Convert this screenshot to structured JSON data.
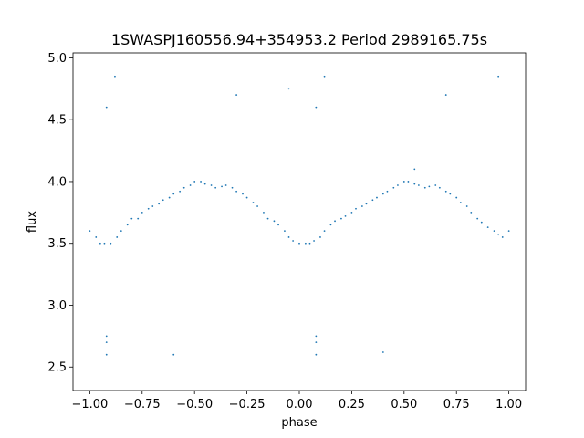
{
  "chart_data": {
    "type": "scatter",
    "title": "1SWASPJ160556.94+354953.2 Period 2989165.75s",
    "xlabel": "phase",
    "ylabel": "flux",
    "xlim": [
      -1.08,
      1.08
    ],
    "ylim": [
      2.31,
      5.04
    ],
    "x_ticks": [
      -1.0,
      -0.75,
      -0.5,
      -0.25,
      0.0,
      0.25,
      0.5,
      0.75,
      1.0
    ],
    "x_tick_labels": [
      "−1.00",
      "−0.75",
      "−0.50",
      "−0.25",
      "0.00",
      "0.25",
      "0.50",
      "0.75",
      "1.00"
    ],
    "y_ticks": [
      2.5,
      3.0,
      3.5,
      4.0,
      4.5,
      5.0
    ],
    "y_tick_labels": [
      "2.5",
      "3.0",
      "3.5",
      "4.0",
      "4.5",
      "5.0"
    ],
    "grid": false,
    "legend": "none",
    "marker_color": "#1f77b4",
    "series": [
      {
        "x": [
          -1.0,
          -0.97,
          -0.95,
          -0.93,
          -0.9,
          -0.87,
          -0.85,
          -0.82,
          -0.8,
          -0.77,
          -0.75,
          -0.72,
          -0.7,
          -0.67,
          -0.65,
          -0.62,
          -0.6,
          -0.57,
          -0.55,
          -0.52,
          -0.5,
          -0.47,
          -0.45,
          -0.42,
          -0.4,
          -0.37,
          -0.35,
          -0.32,
          -0.3,
          -0.27,
          -0.25,
          -0.22,
          -0.2,
          -0.17,
          -0.15,
          -0.12,
          -0.1,
          -0.07,
          -0.05,
          -0.03,
          0.0,
          0.03,
          0.05,
          0.07,
          0.1,
          0.12,
          0.15,
          0.17,
          0.2,
          0.22,
          0.25,
          0.27,
          0.3,
          0.32,
          0.35,
          0.37,
          0.4,
          0.42,
          0.45,
          0.47,
          0.5,
          0.52,
          0.55,
          0.57,
          0.6,
          0.62,
          0.65,
          0.67,
          0.7,
          0.72,
          0.75,
          0.77,
          0.8,
          0.82,
          0.85,
          0.87,
          0.9,
          0.93,
          0.95,
          0.97,
          1.0,
          -0.92,
          -0.92,
          -0.92,
          0.08,
          0.08,
          0.08,
          -0.92,
          0.08,
          -0.6,
          0.4,
          -0.88,
          0.12,
          -0.3,
          0.7,
          -0.05,
          0.95,
          0.55
        ],
        "y": [
          3.6,
          3.55,
          3.5,
          3.5,
          3.5,
          3.55,
          3.6,
          3.65,
          3.7,
          3.7,
          3.75,
          3.78,
          3.8,
          3.82,
          3.85,
          3.87,
          3.9,
          3.92,
          3.95,
          3.97,
          4.0,
          4.0,
          3.98,
          3.97,
          3.95,
          3.96,
          3.97,
          3.95,
          3.92,
          3.9,
          3.87,
          3.83,
          3.8,
          3.75,
          3.7,
          3.68,
          3.65,
          3.6,
          3.55,
          3.52,
          3.5,
          3.5,
          3.5,
          3.52,
          3.55,
          3.6,
          3.65,
          3.68,
          3.7,
          3.72,
          3.75,
          3.78,
          3.8,
          3.82,
          3.85,
          3.87,
          3.9,
          3.92,
          3.95,
          3.97,
          4.0,
          4.0,
          3.98,
          3.97,
          3.95,
          3.96,
          3.97,
          3.95,
          3.92,
          3.9,
          3.87,
          3.83,
          3.8,
          3.75,
          3.7,
          3.67,
          3.63,
          3.6,
          3.57,
          3.55,
          3.6,
          2.7,
          2.6,
          2.75,
          2.7,
          2.6,
          2.75,
          4.6,
          4.6,
          2.6,
          2.62,
          4.85,
          4.85,
          4.7,
          4.7,
          4.75,
          4.85,
          4.1
        ]
      }
    ]
  }
}
